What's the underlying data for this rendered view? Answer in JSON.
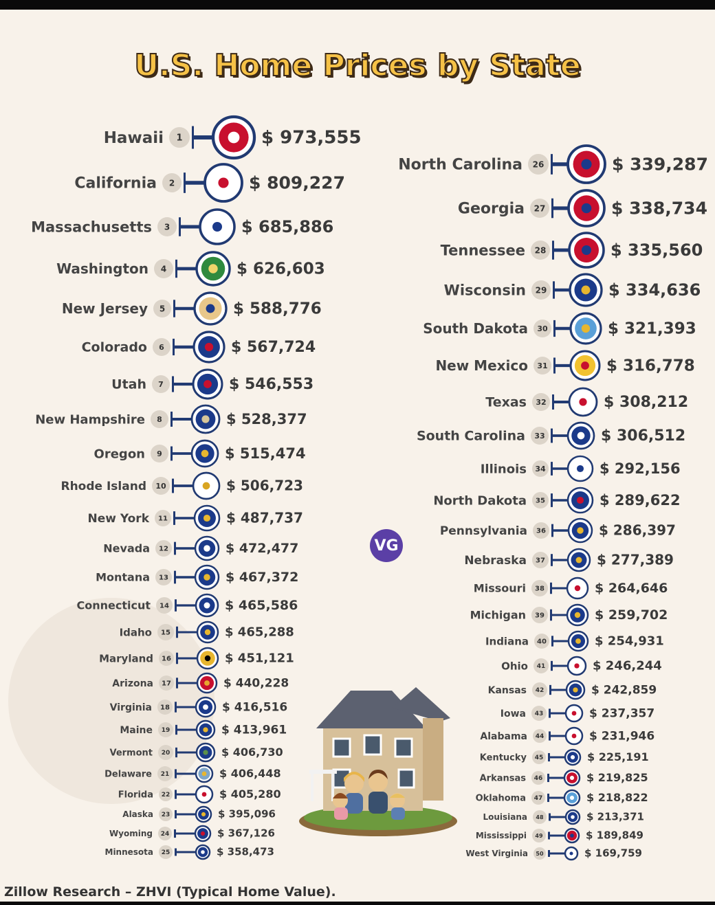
{
  "title": "U.S. Home Prices by State",
  "logo_text": "VG",
  "source": "Zillow Research – ZHVI (Typical Home Value).",
  "colors": {
    "connector": "#213a72",
    "badge": "#dcd4c9",
    "title_fill": "#f6c247",
    "title_stroke": "#3d2a17",
    "vg": "#5b3fa6"
  },
  "chart_data": {
    "type": "table",
    "title": "U.S. Home Prices by State",
    "columns": [
      "rank",
      "state",
      "value"
    ],
    "rows": [
      {
        "rank": 1,
        "state": "Hawaii",
        "value": "$ 973,555",
        "flag": "hawaii-flag-icon"
      },
      {
        "rank": 2,
        "state": "California",
        "value": "$ 809,227",
        "flag": "california-flag-icon"
      },
      {
        "rank": 3,
        "state": "Massachusetts",
        "value": "$ 685,886",
        "flag": "massachusetts-flag-icon"
      },
      {
        "rank": 4,
        "state": "Washington",
        "value": "$ 626,603",
        "flag": "washington-flag-icon"
      },
      {
        "rank": 5,
        "state": "New Jersey",
        "value": "$ 588,776",
        "flag": "new-jersey-flag-icon"
      },
      {
        "rank": 6,
        "state": "Colorado",
        "value": "$ 567,724",
        "flag": "colorado-flag-icon"
      },
      {
        "rank": 7,
        "state": "Utah",
        "value": "$ 546,553",
        "flag": "utah-flag-icon"
      },
      {
        "rank": 8,
        "state": "New Hampshire",
        "value": "$ 528,377",
        "flag": "new-hampshire-flag-icon"
      },
      {
        "rank": 9,
        "state": "Oregon",
        "value": "$ 515,474",
        "flag": "oregon-flag-icon"
      },
      {
        "rank": 10,
        "state": "Rhode Island",
        "value": "$ 506,723",
        "flag": "rhode-island-flag-icon"
      },
      {
        "rank": 11,
        "state": "New York",
        "value": "$ 487,737",
        "flag": "new-york-flag-icon"
      },
      {
        "rank": 12,
        "state": "Nevada",
        "value": "$ 472,477",
        "flag": "nevada-flag-icon"
      },
      {
        "rank": 13,
        "state": "Montana",
        "value": "$ 467,372",
        "flag": "montana-flag-icon"
      },
      {
        "rank": 14,
        "state": "Connecticut",
        "value": "$ 465,586",
        "flag": "connecticut-flag-icon"
      },
      {
        "rank": 15,
        "state": "Idaho",
        "value": "$ 465,288",
        "flag": "idaho-flag-icon"
      },
      {
        "rank": 16,
        "state": "Maryland",
        "value": "$ 451,121",
        "flag": "maryland-flag-icon"
      },
      {
        "rank": 17,
        "state": "Arizona",
        "value": "$ 440,228",
        "flag": "arizona-flag-icon"
      },
      {
        "rank": 18,
        "state": "Virginia",
        "value": "$ 416,516",
        "flag": "virginia-flag-icon"
      },
      {
        "rank": 19,
        "state": "Maine",
        "value": "$ 413,961",
        "flag": "maine-flag-icon"
      },
      {
        "rank": 20,
        "state": "Vermont",
        "value": "$ 406,730",
        "flag": "vermont-flag-icon"
      },
      {
        "rank": 21,
        "state": "Delaware",
        "value": "$ 406,448",
        "flag": "delaware-flag-icon"
      },
      {
        "rank": 22,
        "state": "Florida",
        "value": "$ 405,280",
        "flag": "florida-flag-icon"
      },
      {
        "rank": 23,
        "state": "Alaska",
        "value": "$ 395,096",
        "flag": "alaska-flag-icon"
      },
      {
        "rank": 24,
        "state": "Wyoming",
        "value": "$ 367,126",
        "flag": "wyoming-flag-icon"
      },
      {
        "rank": 25,
        "state": "Minnesota",
        "value": "$ 358,473",
        "flag": "minnesota-flag-icon"
      },
      {
        "rank": 26,
        "state": "North Carolina",
        "value": "$ 339,287",
        "flag": "north-carolina-flag-icon"
      },
      {
        "rank": 27,
        "state": "Georgia",
        "value": "$ 338,734",
        "flag": "georgia-flag-icon"
      },
      {
        "rank": 28,
        "state": "Tennessee",
        "value": "$ 335,560",
        "flag": "tennessee-flag-icon"
      },
      {
        "rank": 29,
        "state": "Wisconsin",
        "value": "$ 334,636",
        "flag": "wisconsin-flag-icon"
      },
      {
        "rank": 30,
        "state": "South Dakota",
        "value": "$ 321,393",
        "flag": "south-dakota-flag-icon"
      },
      {
        "rank": 31,
        "state": "New Mexico",
        "value": "$ 316,778",
        "flag": "new-mexico-flag-icon"
      },
      {
        "rank": 32,
        "state": "Texas",
        "value": "$ 308,212",
        "flag": "texas-flag-icon"
      },
      {
        "rank": 33,
        "state": "South Carolina",
        "value": "$ 306,512",
        "flag": "south-carolina-flag-icon"
      },
      {
        "rank": 34,
        "state": "Illinois",
        "value": "$ 292,156",
        "flag": "illinois-flag-icon"
      },
      {
        "rank": 35,
        "state": "North Dakota",
        "value": "$ 289,622",
        "flag": "north-dakota-flag-icon"
      },
      {
        "rank": 36,
        "state": "Pennsylvania",
        "value": "$ 286,397",
        "flag": "pennsylvania-flag-icon"
      },
      {
        "rank": 37,
        "state": "Nebraska",
        "value": "$ 277,389",
        "flag": "nebraska-flag-icon"
      },
      {
        "rank": 38,
        "state": "Missouri",
        "value": "$ 264,646",
        "flag": "missouri-flag-icon"
      },
      {
        "rank": 39,
        "state": "Michigan",
        "value": "$ 259,702",
        "flag": "michigan-flag-icon"
      },
      {
        "rank": 40,
        "state": "Indiana",
        "value": "$ 254,931",
        "flag": "indiana-flag-icon"
      },
      {
        "rank": 41,
        "state": "Ohio",
        "value": "$ 246,244",
        "flag": "ohio-flag-icon"
      },
      {
        "rank": 42,
        "state": "Kansas",
        "value": "$ 242,859",
        "flag": "kansas-flag-icon"
      },
      {
        "rank": 43,
        "state": "Iowa",
        "value": "$ 237,357",
        "flag": "iowa-flag-icon"
      },
      {
        "rank": 44,
        "state": "Alabama",
        "value": "$ 231,946",
        "flag": "alabama-flag-icon"
      },
      {
        "rank": 45,
        "state": "Kentucky",
        "value": "$ 225,191",
        "flag": "kentucky-flag-icon"
      },
      {
        "rank": 46,
        "state": "Arkansas",
        "value": "$ 219,825",
        "flag": "arkansas-flag-icon"
      },
      {
        "rank": 47,
        "state": "Oklahoma",
        "value": "$ 218,822",
        "flag": "oklahoma-flag-icon"
      },
      {
        "rank": 48,
        "state": "Louisiana",
        "value": "$ 213,371",
        "flag": "louisiana-flag-icon"
      },
      {
        "rank": 49,
        "state": "Mississippi",
        "value": "$ 189,849",
        "flag": "mississippi-flag-icon"
      },
      {
        "rank": 50,
        "state": "West Virginia",
        "value": "$ 169,759",
        "flag": "west-virginia-flag-icon"
      }
    ]
  }
}
